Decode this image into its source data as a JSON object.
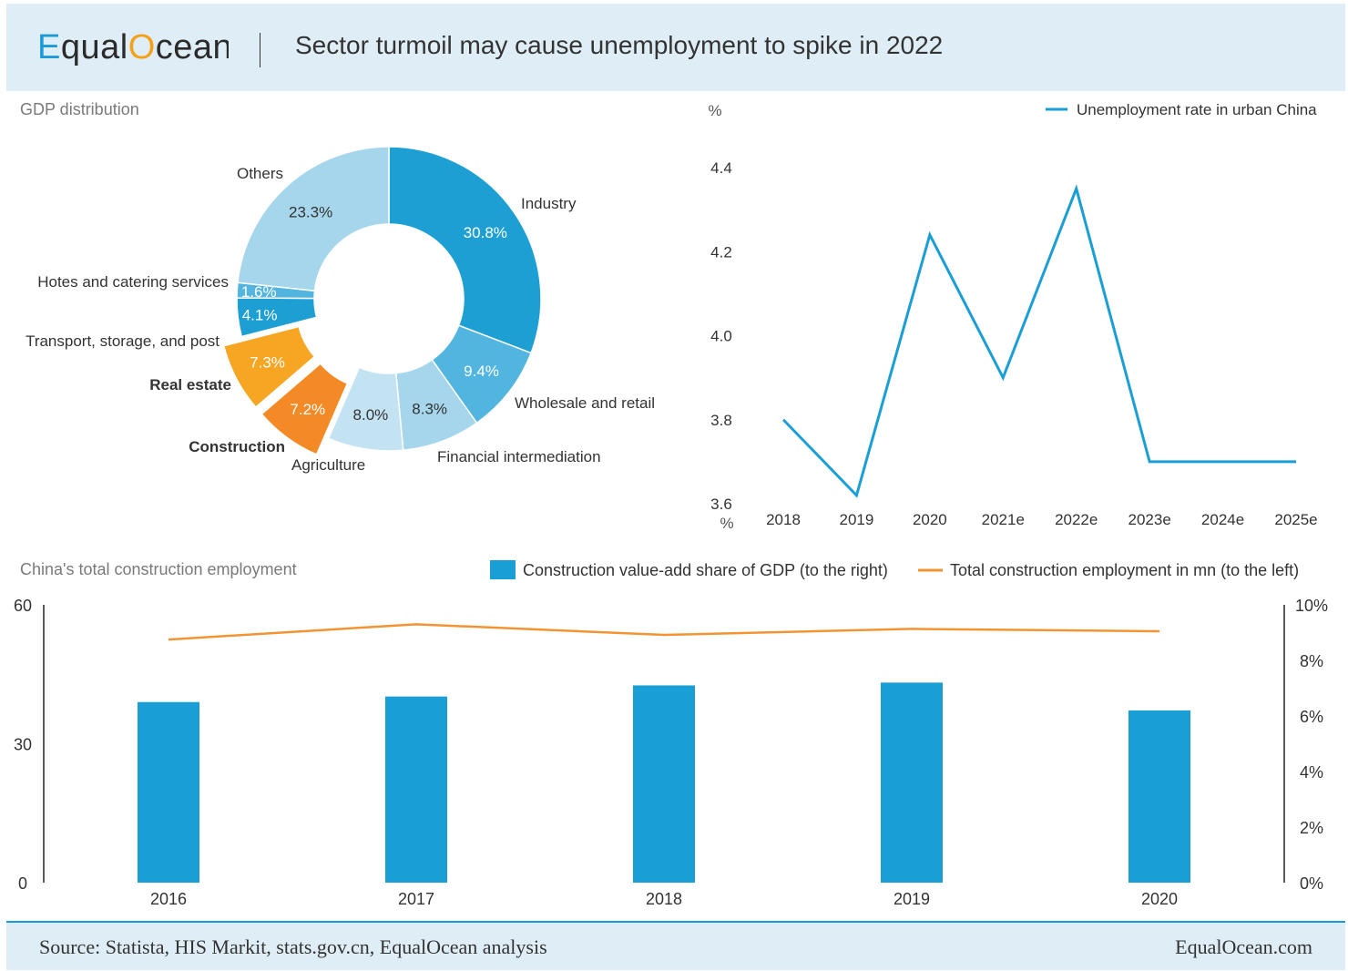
{
  "header": {
    "logo_text": "EqualOcean",
    "title": "Sector turmoil may cause unemployment to spike in 2022"
  },
  "footer": {
    "source": "Source: Statista, HIS Markit, stats.gov.cn, EqualOcean analysis",
    "site": "EqualOcean.com"
  },
  "colors": {
    "blue": "#1a9ed6",
    "orange": "#f5a01a",
    "header_bg": "#dfeef6"
  },
  "chart_data": [
    {
      "type": "pie",
      "title": "GDP distribution",
      "slices": [
        {
          "label": "Industry",
          "value": 30.8,
          "value_label": "30.8%",
          "color": "#1e9fd4",
          "bold": false
        },
        {
          "label": "Wholesale and retail",
          "value": 9.4,
          "value_label": "9.4%",
          "color": "#52b5df",
          "bold": false
        },
        {
          "label": "Financial intermediation",
          "value": 8.3,
          "value_label": "8.3%",
          "color": "#a6d6eb",
          "bold": false
        },
        {
          "label": "Agriculture",
          "value": 8.0,
          "value_label": "8.0%",
          "color": "#c3e3f2",
          "bold": false
        },
        {
          "label": "Construction",
          "value": 7.2,
          "value_label": "7.2%",
          "color": "#f38a25",
          "bold": true,
          "exploded": true
        },
        {
          "label": "Real estate",
          "value": 7.3,
          "value_label": "7.3%",
          "color": "#f6a623",
          "bold": true,
          "exploded": true
        },
        {
          "label": "Transport, storage, and post",
          "value": 4.1,
          "value_label": "4.1%",
          "color": "#1e9fd4",
          "bold": false
        },
        {
          "label": "Hotes and catering services",
          "value": 1.6,
          "value_label": "1.6%",
          "color": "#52b5df",
          "bold": false
        },
        {
          "label": "Others",
          "value": 23.3,
          "value_label": "23.3%",
          "color": "#a6d6eb",
          "bold": false
        }
      ]
    },
    {
      "type": "line",
      "y_unit_top": "%",
      "y_unit_bottom": "%",
      "legend": "Unemployment rate in urban China",
      "legend_position": "top-right",
      "x": [
        "2018",
        "2019",
        "2020",
        "2021e",
        "2022e",
        "2023e",
        "2024e",
        "2025e"
      ],
      "values": [
        3.8,
        3.62,
        4.24,
        3.9,
        4.35,
        3.7,
        3.7,
        3.7
      ],
      "yticks": [
        "4.4",
        "4.2",
        "4.0",
        "3.8",
        "3.6"
      ],
      "ylim": [
        3.6,
        4.4
      ],
      "color": "#1a9ed6"
    },
    {
      "type": "bar",
      "title": "China's total construction employment",
      "categories": [
        "2016",
        "2017",
        "2018",
        "2019",
        "2020"
      ],
      "series": [
        {
          "name": "Construction value-add share of GDP (to the right)",
          "values": [
            6.5,
            6.7,
            7.1,
            7.2,
            6.2
          ],
          "axis": "right",
          "color": "#1a9ed6"
        },
        {
          "name": "Total construction employment in mn (to the left)",
          "values": [
            52.5,
            55.8,
            53.5,
            54.8,
            54.3
          ],
          "axis": "left",
          "color": "#f29432",
          "kind": "line"
        }
      ],
      "left_ticks": [
        "60",
        "30",
        "0"
      ],
      "left_ylim": [
        0,
        60
      ],
      "right_ticks": [
        "10%",
        "8%",
        "6%",
        "4%",
        "2%",
        "0%"
      ],
      "right_ylim": [
        0,
        10
      ]
    }
  ]
}
